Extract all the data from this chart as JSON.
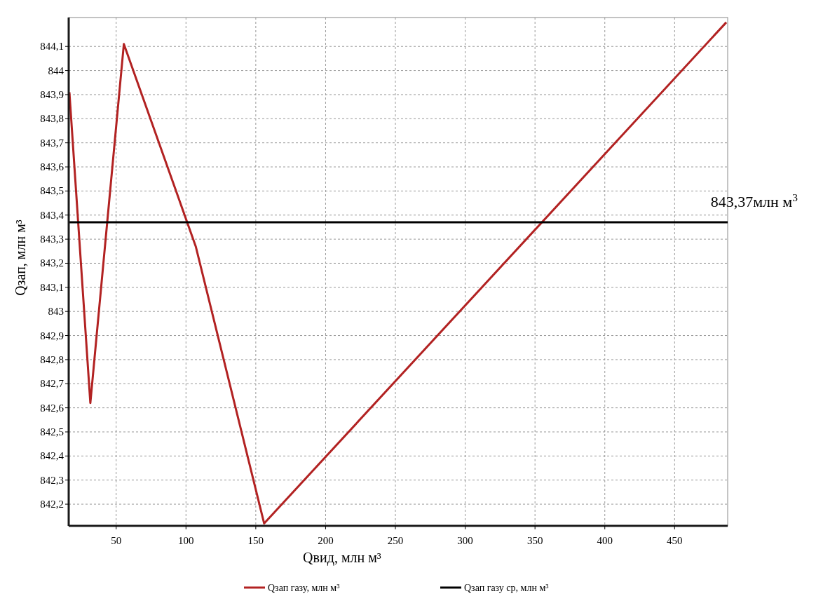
{
  "chart_data": {
    "type": "line",
    "xlabel": "Qвид, млн  м³",
    "ylabel": "Qзап, млн  м³",
    "xlim": [
      16,
      488
    ],
    "ylim": [
      842.11,
      844.22
    ],
    "xticks": [
      50,
      100,
      150,
      200,
      250,
      300,
      350,
      400,
      450
    ],
    "yticks": [
      {
        "value": 842.2,
        "label": "842,2"
      },
      {
        "value": 842.3,
        "label": "842,3"
      },
      {
        "value": 842.4,
        "label": "842,4"
      },
      {
        "value": 842.5,
        "label": "842,5"
      },
      {
        "value": 842.6,
        "label": "842,6"
      },
      {
        "value": 842.7,
        "label": "842,7"
      },
      {
        "value": 842.8,
        "label": "842,8"
      },
      {
        "value": 842.9,
        "label": "842,9"
      },
      {
        "value": 843,
        "label": "843"
      },
      {
        "value": 843.1,
        "label": "843,1"
      },
      {
        "value": 843.2,
        "label": "843,2"
      },
      {
        "value": 843.3,
        "label": "843,3"
      },
      {
        "value": 843.4,
        "label": "843,4"
      },
      {
        "value": 843.5,
        "label": "843,5"
      },
      {
        "value": 843.6,
        "label": "843,6"
      },
      {
        "value": 843.7,
        "label": "843,7"
      },
      {
        "value": 843.8,
        "label": "843,8"
      },
      {
        "value": 843.9,
        "label": "843,9"
      },
      {
        "value": 844,
        "label": "844"
      },
      {
        "value": 844.1,
        "label": "844,1"
      }
    ],
    "series": [
      {
        "name": "Qзап газу, млн м³",
        "color": "#b22222",
        "x": [
          16.5,
          31.5,
          55.5,
          107,
          156,
          487
        ],
        "values": [
          843.91,
          842.62,
          844.11,
          843.27,
          842.12,
          844.2
        ]
      },
      {
        "name": "Qзап газу ср, млн м³",
        "color": "#000000",
        "x": [
          16,
          488
        ],
        "values": [
          843.37,
          843.37
        ]
      }
    ],
    "annotations": [
      {
        "text": "843,37млн м$^{3}$",
        "x": 488,
        "y": 843.37
      }
    ],
    "grid": true,
    "legend": "bottom",
    "line_style": "solid"
  }
}
